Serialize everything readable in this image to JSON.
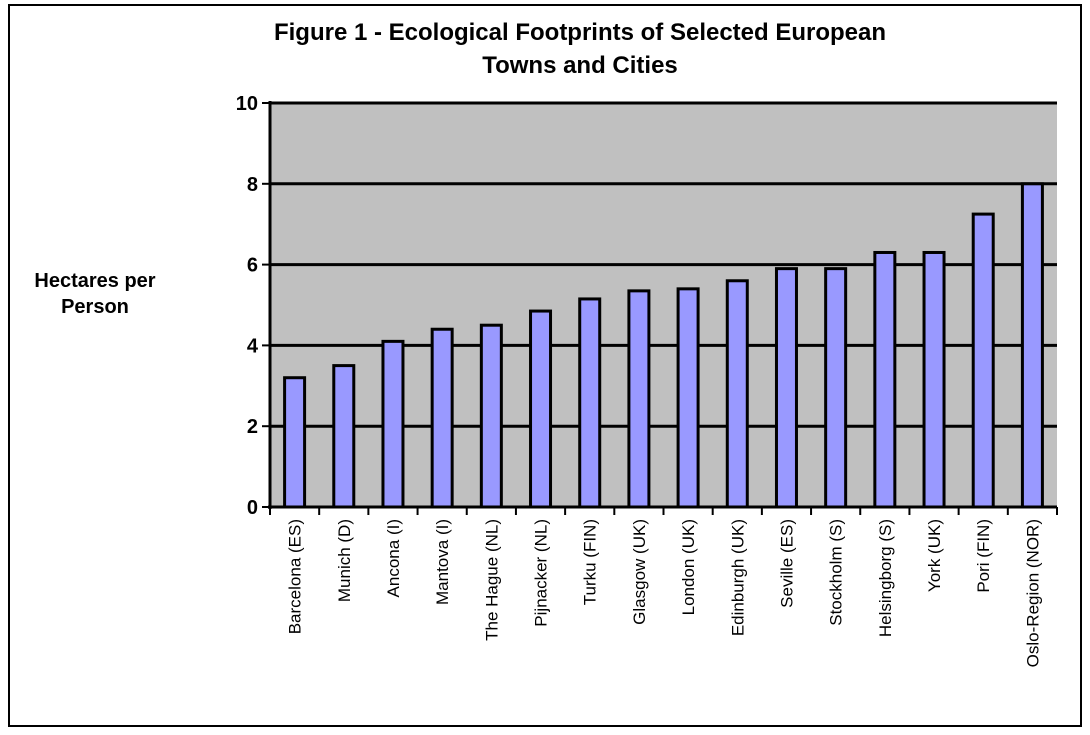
{
  "chart_data": {
    "type": "bar",
    "title": "Figure 1 - Ecological Footprints of Selected European Towns and Cities",
    "title_lines": [
      "Figure 1 - Ecological Footprints of Selected European",
      "Towns and Cities"
    ],
    "ylabel": "Hectares per\nPerson",
    "xlabel": "",
    "ylim": [
      0,
      10
    ],
    "yticks": [
      0,
      2,
      4,
      6,
      8,
      10
    ],
    "grid": true,
    "categories": [
      "Barcelona (ES)",
      "Munich (D)",
      "Ancona (I)",
      "Mantova (I)",
      "The Hague (NL)",
      "Pijnacker (NL)",
      "Turku (FIN)",
      "Glasgow (UK)",
      "London (UK)",
      "Edinburgh (UK)",
      "Seville (ES)",
      "Stockholm (S)",
      "Helsingborg (S)",
      "York (UK)",
      "Pori (FIN)",
      "Oslo-Region (NOR)"
    ],
    "values": [
      3.2,
      3.5,
      4.1,
      4.4,
      4.5,
      4.85,
      5.15,
      5.35,
      5.4,
      5.6,
      5.9,
      5.9,
      6.3,
      6.3,
      7.25,
      8.0
    ],
    "colors": {
      "bar": "#9999ff",
      "plot_background": "#c0c0c0",
      "gridline": "#000000"
    }
  }
}
